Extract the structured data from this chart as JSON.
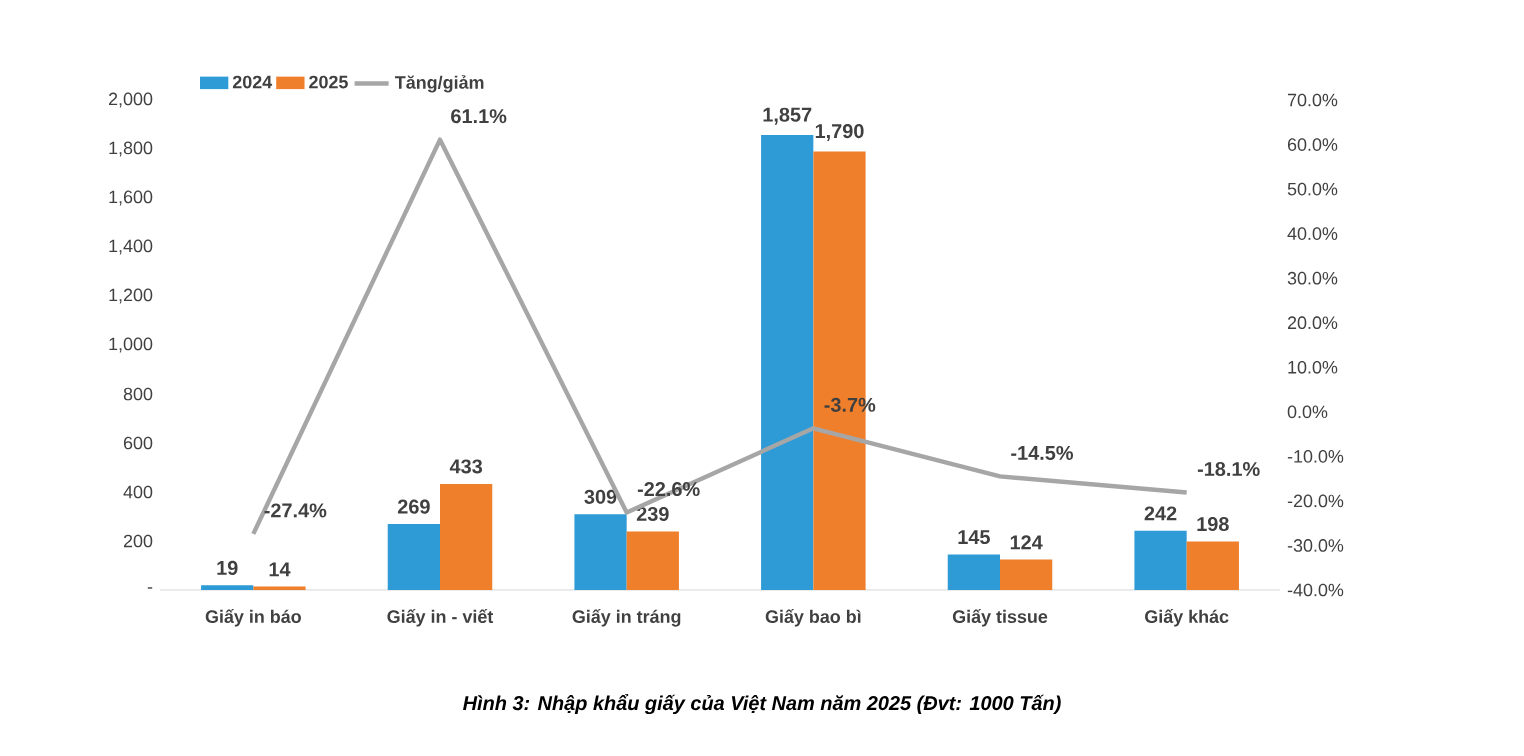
{
  "chart_data": {
    "type": "bar",
    "categories": [
      "Giấy in báo",
      "Giấy in - viết",
      "Giấy in tráng",
      "Giấy bao bì",
      "Giấy tissue",
      "Giấy khác"
    ],
    "series": [
      {
        "name": "2024",
        "color": "#2e9bd6",
        "values": [
          19,
          269,
          309,
          1857,
          145,
          242
        ],
        "value_labels": [
          "19",
          "269",
          "309",
          "1,857",
          "145",
          "242"
        ]
      },
      {
        "name": "2025",
        "color": "#f07f2b",
        "values": [
          14,
          433,
          239,
          1790,
          124,
          198
        ],
        "value_labels": [
          "14",
          "433",
          "239",
          "1,790",
          "124",
          "198"
        ]
      },
      {
        "name": "Tăng/giảm",
        "type": "line",
        "axis": "y2",
        "color": "#a6a6a6",
        "values": [
          -27.4,
          61.1,
          -22.6,
          -3.7,
          -14.5,
          -18.1
        ],
        "value_labels": [
          "-27.4%",
          "61.1%",
          "-22.6%",
          "-3.7%",
          "-14.5%",
          "-18.1%"
        ]
      }
    ],
    "ylim": [
      0,
      2000
    ],
    "yticks": [
      {
        "value": 0,
        "label": "-"
      },
      {
        "value": 200,
        "label": "200"
      },
      {
        "value": 400,
        "label": "400"
      },
      {
        "value": 600,
        "label": "600"
      },
      {
        "value": 800,
        "label": "800"
      },
      {
        "value": 1000,
        "label": "1,000"
      },
      {
        "value": 1200,
        "label": "1,200"
      },
      {
        "value": 1400,
        "label": "1,400"
      },
      {
        "value": 1600,
        "label": "1,600"
      },
      {
        "value": 1800,
        "label": "1,800"
      },
      {
        "value": 2000,
        "label": "2,000"
      }
    ],
    "y2lim": [
      -40,
      70
    ],
    "y2ticks": [
      {
        "value": -40,
        "label": "-40.0%"
      },
      {
        "value": -30,
        "label": "-30.0%"
      },
      {
        "value": -20,
        "label": "-20.0%"
      },
      {
        "value": -10,
        "label": "-10.0%"
      },
      {
        "value": 0,
        "label": "0.0%"
      },
      {
        "value": 10,
        "label": "10.0%"
      },
      {
        "value": 20,
        "label": "20.0%"
      },
      {
        "value": 30,
        "label": "30.0%"
      },
      {
        "value": 40,
        "label": "40.0%"
      },
      {
        "value": 50,
        "label": "50.0%"
      },
      {
        "value": 60,
        "label": "60.0%"
      },
      {
        "value": 70,
        "label": "70.0%"
      }
    ],
    "legend": "top left",
    "annotations": [
      "Hình 3: Nhập khẩu giấy của Việt Nam năm 2025 (Đvt: 1000 Tấn)"
    ]
  }
}
